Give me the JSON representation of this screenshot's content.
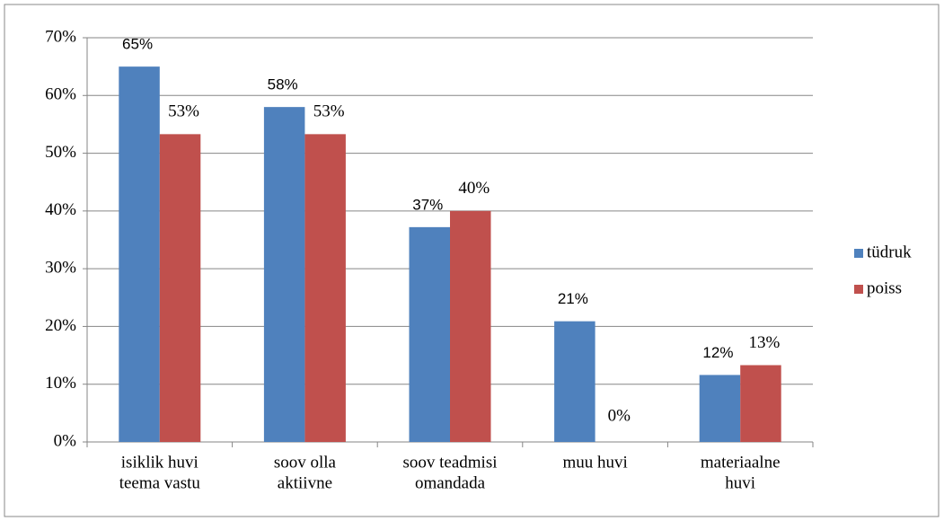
{
  "chart_data": {
    "type": "bar",
    "categories": [
      [
        "isiklik huvi",
        "teema vastu"
      ],
      [
        "soov olla",
        "aktiivne"
      ],
      [
        "soov teadmisi",
        "omandada"
      ],
      [
        "muu huvi"
      ],
      [
        "materiaalne",
        "huvi"
      ]
    ],
    "series": [
      {
        "name": "tüdruk",
        "color": "#4f81bd",
        "values": [
          65,
          58,
          37.2,
          20.9,
          11.6
        ],
        "value_labels": [
          "65%",
          "58%",
          "37%",
          "21%",
          "12%"
        ]
      },
      {
        "name": "poiss",
        "color": "#c0504d",
        "values": [
          53.3,
          53.3,
          40,
          0,
          13.3
        ],
        "value_labels": [
          "53%",
          "53%",
          "40%",
          "0%",
          "13%"
        ]
      }
    ],
    "ylim": [
      0,
      70
    ],
    "yticks": [
      {
        "value": 0,
        "label": "0%"
      },
      {
        "value": 10,
        "label": "10%"
      },
      {
        "value": 20,
        "label": "20%"
      },
      {
        "value": 30,
        "label": "30%"
      },
      {
        "value": 40,
        "label": "40%"
      },
      {
        "value": 50,
        "label": "50%"
      },
      {
        "value": 60,
        "label": "60%"
      },
      {
        "value": 70,
        "label": "70%"
      }
    ],
    "grid": true,
    "legend": "right"
  }
}
